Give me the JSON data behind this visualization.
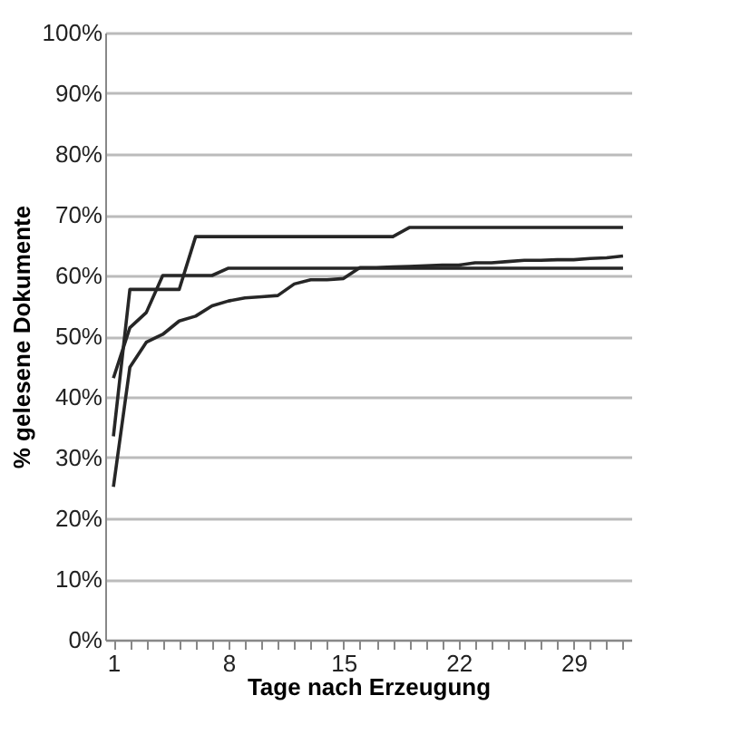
{
  "chart_data": {
    "type": "line",
    "xlabel": "Tage nach Erzeugung",
    "ylabel": "% gelesene Dokumente",
    "categories": [
      "1",
      null,
      null,
      null,
      null,
      null,
      null,
      "8",
      null,
      null,
      null,
      null,
      null,
      null,
      "15",
      null,
      null,
      null,
      null,
      null,
      null,
      "22",
      null,
      null,
      null,
      null,
      null,
      null,
      "29",
      null,
      null,
      null
    ],
    "series": [
      {
        "color": "#262626",
        "values": [
          43.1,
          51.4,
          53.9,
          60.0,
          60.0,
          60.0,
          60.0,
          61.2,
          61.2,
          61.2,
          61.2,
          61.2,
          61.2,
          61.2,
          61.2,
          61.2,
          61.2,
          61.2,
          61.2,
          61.2,
          61.2,
          61.2,
          61.2,
          61.2,
          61.2,
          61.2,
          61.2,
          61.2,
          61.2,
          61.2,
          61.2,
          61.2
        ]
      },
      {
        "color": "#262626",
        "values": [
          33.5,
          57.7,
          57.7,
          57.7,
          57.7,
          66.4,
          66.4,
          66.4,
          66.4,
          66.4,
          66.4,
          66.4,
          66.4,
          66.4,
          66.4,
          66.4,
          66.4,
          66.4,
          67.9,
          67.9,
          67.9,
          67.9,
          67.9,
          67.9,
          67.9,
          67.9,
          67.9,
          67.9,
          67.9,
          67.9,
          67.9,
          67.9
        ]
      },
      {
        "color": "#262626",
        "values": [
          25.2,
          44.9,
          49.0,
          50.3,
          52.5,
          53.3,
          55.0,
          55.8,
          56.3,
          56.5,
          56.7,
          58.6,
          59.3,
          59.3,
          59.5,
          61.3,
          61.3,
          61.4,
          61.5,
          61.6,
          61.7,
          61.7,
          62.1,
          62.1,
          62.3,
          62.5,
          62.5,
          62.6,
          62.6,
          62.8,
          62.9,
          63.2
        ]
      }
    ],
    "ylim": [
      0,
      100
    ],
    "yticks": [
      {
        "value": 0,
        "label": "0%"
      },
      {
        "value": 10,
        "label": "10%"
      },
      {
        "value": 20,
        "label": "20%"
      },
      {
        "value": 30,
        "label": "30%"
      },
      {
        "value": 40,
        "label": "40%"
      },
      {
        "value": 50,
        "label": "50%"
      },
      {
        "value": 60,
        "label": "60%"
      },
      {
        "value": 70,
        "label": "70%"
      },
      {
        "value": 80,
        "label": "80%"
      },
      {
        "value": 90,
        "label": "90%"
      },
      {
        "value": 100,
        "label": "100%"
      }
    ],
    "grid": "y",
    "legend": false,
    "marker": "none",
    "line_style": "solid"
  }
}
